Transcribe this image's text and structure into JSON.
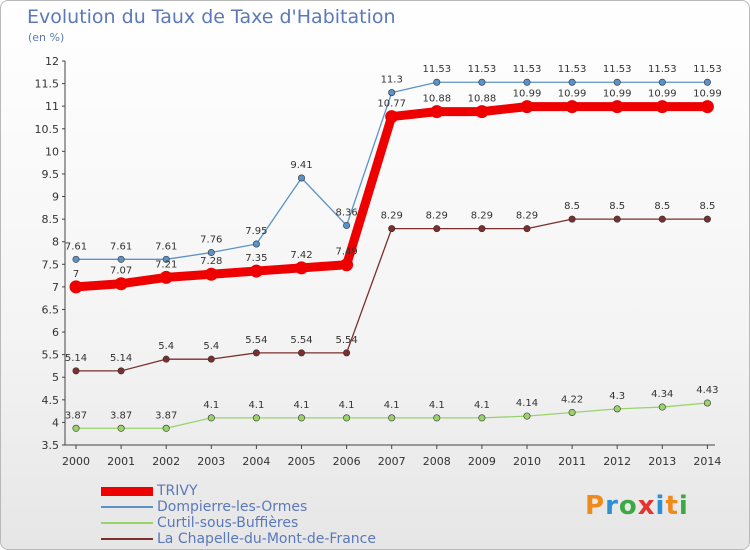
{
  "header": {
    "title": "Evolution du Taux de Taxe d'Habitation",
    "subtitle": "(en %)"
  },
  "logo": {
    "letters": [
      "P",
      "r",
      "o",
      "x",
      "i",
      "t",
      "i"
    ],
    "colors": [
      "#f08a1c",
      "#2d8fd6",
      "#3ca944",
      "#e8312a",
      "#2d8fd6",
      "#f08a1c",
      "#3ca944"
    ]
  },
  "chart_data": {
    "type": "line",
    "x": [
      "2000",
      "2001",
      "2002",
      "2003",
      "2004",
      "2005",
      "2006",
      "2007",
      "2008",
      "2009",
      "2010",
      "2011",
      "2012",
      "2013",
      "2014"
    ],
    "ylim": [
      3.5,
      12
    ],
    "yticks": [
      "3.5",
      "4",
      "4.5",
      "5",
      "5.5",
      "6",
      "6.5",
      "7",
      "7.5",
      "8",
      "8.5",
      "9",
      "9.5",
      "10",
      "10.5",
      "11",
      "11.5",
      "12"
    ],
    "grid": false,
    "legend_position": "bottom-left",
    "series": [
      {
        "name": "TRIVY",
        "color": "#ee0000",
        "values": [
          7,
          7.07,
          7.21,
          7.28,
          7.35,
          7.42,
          7.49,
          10.77,
          10.88,
          10.88,
          10.99,
          10.99,
          10.99,
          10.99,
          10.99
        ],
        "labels": [
          "7",
          "7.07",
          "7.21",
          "7.28",
          "7.35",
          "7.42",
          "7.49",
          "10.77",
          "10.88",
          "10.88",
          "10.99",
          "10.99",
          "10.99",
          "10.99",
          "10.99"
        ]
      },
      {
        "name": "Dompierre-les-Ormes",
        "color": "#5b92c8",
        "values": [
          7.61,
          7.61,
          7.61,
          7.76,
          7.95,
          9.41,
          8.36,
          11.3,
          11.53,
          11.53,
          11.53,
          11.53,
          11.53,
          11.53,
          11.53
        ],
        "labels": [
          "7.61",
          "7.61",
          "7.61",
          "7.76",
          "7.95",
          "9.41",
          "8.36",
          "11.3",
          "11.53",
          "11.53",
          "11.53",
          "11.53",
          "11.53",
          "11.53",
          "11.53"
        ]
      },
      {
        "name": "Curtil-sous-Buffières",
        "color": "#9ad36b",
        "values": [
          3.87,
          3.87,
          3.87,
          4.1,
          4.1,
          4.1,
          4.1,
          4.1,
          4.1,
          4.1,
          4.14,
          4.22,
          4.3,
          4.34,
          4.43
        ],
        "labels": [
          "3.87",
          "3.87",
          "3.87",
          "4.1",
          "4.1",
          "4.1",
          "4.1",
          "4.1",
          "4.1",
          "4.1",
          "4.14",
          "4.22",
          "4.3",
          "4.34",
          "4.43"
        ]
      },
      {
        "name": "La Chapelle-du-Mont-de-France",
        "color": "#7b2f2f",
        "values": [
          5.14,
          5.14,
          5.4,
          5.4,
          5.54,
          5.54,
          5.54,
          8.29,
          8.29,
          8.29,
          8.29,
          8.5,
          8.5,
          8.5,
          8.5
        ],
        "labels": [
          "5.14",
          "5.14",
          "5.4",
          "5.4",
          "5.54",
          "5.54",
          "5.54",
          "8.29",
          "8.29",
          "8.29",
          "8.29",
          "8.5",
          "8.5",
          "8.5",
          "8.5"
        ]
      }
    ]
  }
}
